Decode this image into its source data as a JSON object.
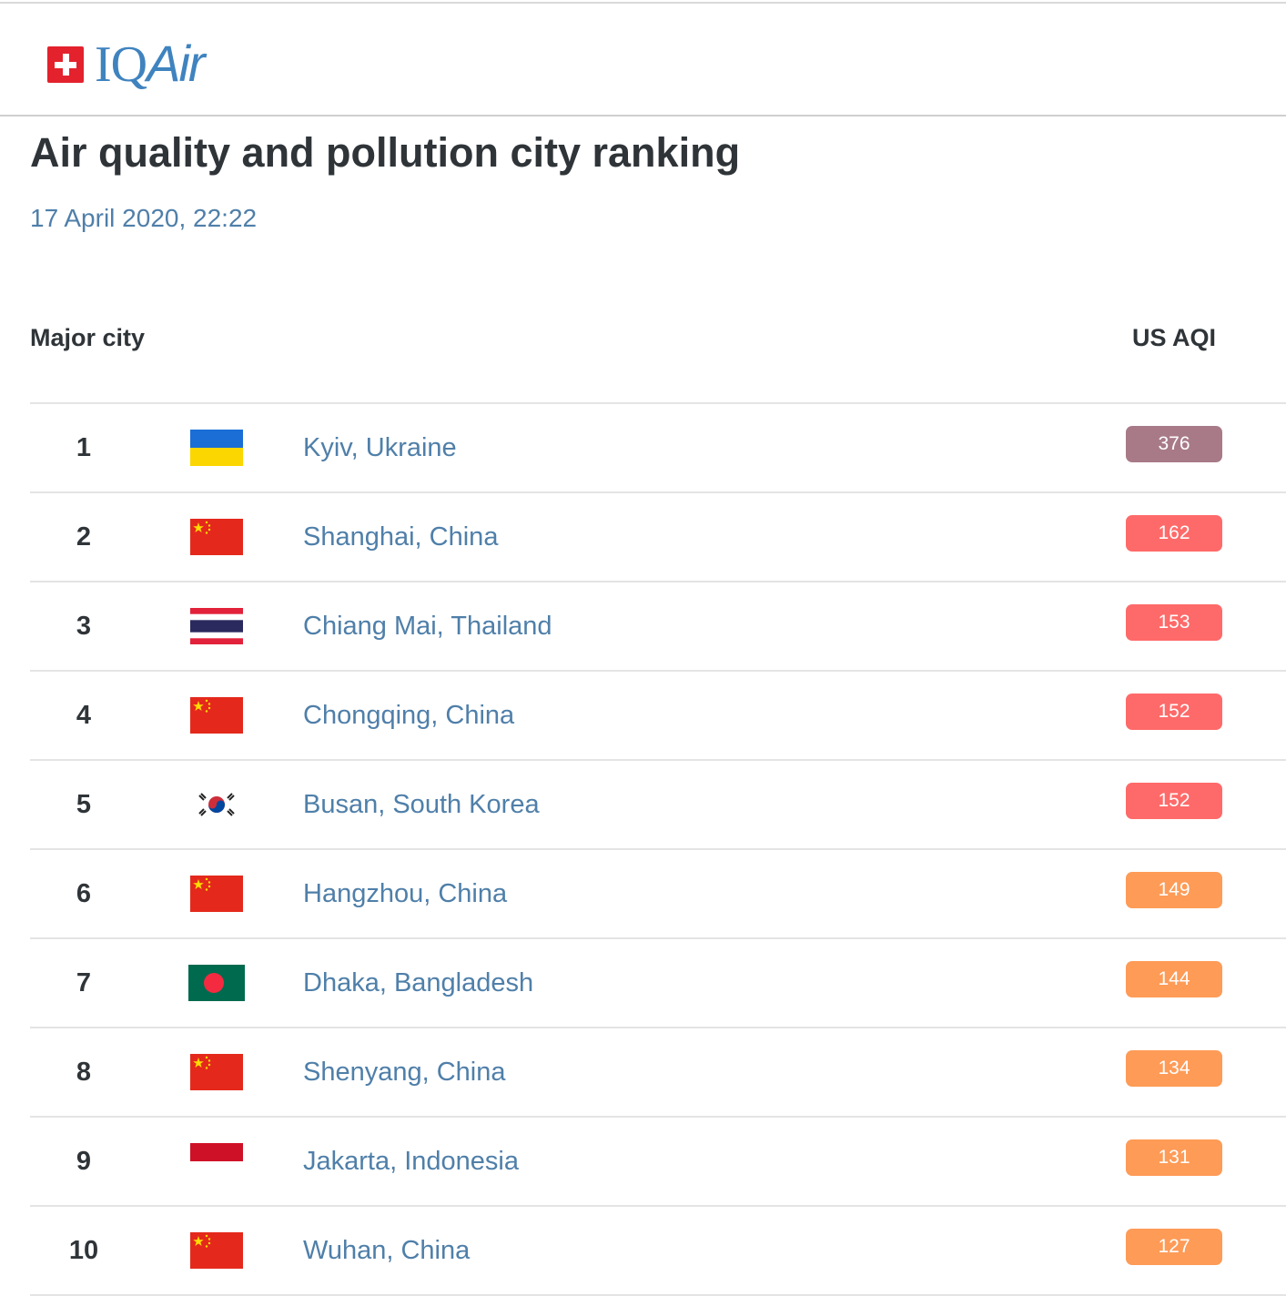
{
  "header": {
    "brand_iq": "IQ",
    "brand_air": "Air"
  },
  "page": {
    "title": "Air quality and pollution city ranking",
    "timestamp": "17 April 2020, 22:22"
  },
  "table": {
    "col_city": "Major city",
    "col_aqi": "US AQI",
    "rows": [
      {
        "rank": "1",
        "city": "Kyiv, Ukraine",
        "aqi": "376",
        "flag": "ukraine-flag-icon",
        "color": "#a87a88"
      },
      {
        "rank": "2",
        "city": "Shanghai, China",
        "aqi": "162",
        "flag": "china-flag-icon",
        "color": "#fe6a69"
      },
      {
        "rank": "3",
        "city": "Chiang Mai, Thailand",
        "aqi": "153",
        "flag": "thailand-flag-icon",
        "color": "#fe6a69"
      },
      {
        "rank": "4",
        "city": "Chongqing, China",
        "aqi": "152",
        "flag": "china-flag-icon",
        "color": "#fe6a69"
      },
      {
        "rank": "5",
        "city": "Busan, South Korea",
        "aqi": "152",
        "flag": "south-korea-flag-icon",
        "color": "#fe6a69"
      },
      {
        "rank": "6",
        "city": "Hangzhou, China",
        "aqi": "149",
        "flag": "china-flag-icon",
        "color": "#fe9b57"
      },
      {
        "rank": "7",
        "city": "Dhaka, Bangladesh",
        "aqi": "144",
        "flag": "bangladesh-flag-icon",
        "color": "#fe9b57"
      },
      {
        "rank": "8",
        "city": "Shenyang, China",
        "aqi": "134",
        "flag": "china-flag-icon",
        "color": "#fe9b57"
      },
      {
        "rank": "9",
        "city": "Jakarta, Indonesia",
        "aqi": "131",
        "flag": "indonesia-flag-icon",
        "color": "#fe9b57"
      },
      {
        "rank": "10",
        "city": "Wuhan, China",
        "aqi": "127",
        "flag": "china-flag-icon",
        "color": "#fe9b57"
      }
    ]
  }
}
